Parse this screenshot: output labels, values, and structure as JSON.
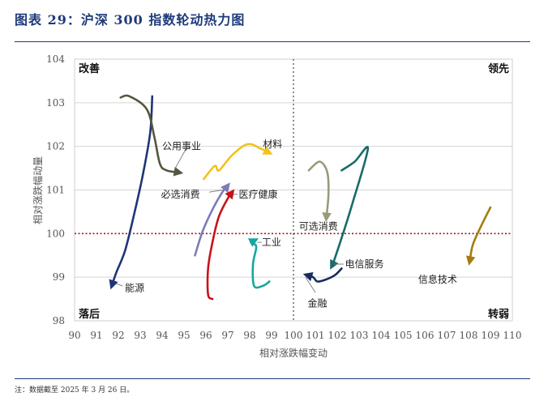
{
  "figure": {
    "title": "图表 29：沪深 300 指数轮动热力图",
    "note": "注：数据截至 2025 年 3 月 26 日。"
  },
  "chart_data": {
    "type": "scatter",
    "xlabel": "相对涨跌幅变动",
    "ylabel": "相对涨跌幅动量",
    "xlim": [
      90,
      110
    ],
    "ylim": [
      98,
      104
    ],
    "xticks": [
      "90",
      "91",
      "92",
      "93",
      "94",
      "95",
      "96",
      "97",
      "98",
      "99",
      "100",
      "101",
      "102",
      "103",
      "104",
      "105",
      "106",
      "107",
      "108",
      "109",
      "110"
    ],
    "yticks": [
      "98",
      "99",
      "100",
      "101",
      "102",
      "103",
      "104"
    ],
    "grid": true,
    "reference_lines": {
      "x": 100,
      "y": 100
    },
    "quadrants": {
      "top_left": "改善",
      "top_right": "领先",
      "bottom_left": "落后",
      "bottom_right": "转弱"
    },
    "series": [
      {
        "name": "能源",
        "color": "#1f3577",
        "points": [
          [
            93.55,
            103.15
          ],
          [
            93.45,
            102.3
          ],
          [
            93.1,
            101.3
          ],
          [
            92.7,
            100.4
          ],
          [
            92.3,
            99.6
          ],
          [
            91.9,
            99.1
          ],
          [
            91.7,
            98.8
          ]
        ]
      },
      {
        "name": "公用事业",
        "color": "#55563f",
        "points": [
          [
            92.1,
            103.12
          ],
          [
            92.5,
            103.15
          ],
          [
            93.3,
            102.85
          ],
          [
            93.65,
            102.2
          ],
          [
            93.9,
            101.6
          ],
          [
            94.2,
            101.45
          ],
          [
            94.8,
            101.4
          ]
        ]
      },
      {
        "name": "材料",
        "color": "#f2c21a",
        "points": [
          [
            95.9,
            101.25
          ],
          [
            96.4,
            101.55
          ],
          [
            96.6,
            101.45
          ],
          [
            97.2,
            101.8
          ],
          [
            97.9,
            102.05
          ],
          [
            98.5,
            101.95
          ],
          [
            98.9,
            101.85
          ]
        ]
      },
      {
        "name": "必选消费",
        "color": "#7d7ab8",
        "points": [
          [
            95.5,
            99.5
          ],
          [
            95.85,
            100.05
          ],
          [
            96.3,
            100.55
          ],
          [
            96.75,
            100.95
          ],
          [
            97.0,
            101.1
          ]
        ]
      },
      {
        "name": "医疗健康",
        "color": "#c8121a",
        "points": [
          [
            96.3,
            98.5
          ],
          [
            96.1,
            98.6
          ],
          [
            96.1,
            99.2
          ],
          [
            96.3,
            99.8
          ],
          [
            96.6,
            100.4
          ],
          [
            97.05,
            100.85
          ],
          [
            97.2,
            100.95
          ]
        ]
      },
      {
        "name": "工业",
        "color": "#16a6a0",
        "points": [
          [
            98.9,
            98.9
          ],
          [
            98.6,
            98.8
          ],
          [
            98.2,
            98.8
          ],
          [
            98.15,
            99.3
          ],
          [
            98.3,
            99.7
          ],
          [
            98.05,
            99.8
          ],
          [
            98.25,
            99.85
          ]
        ]
      },
      {
        "name": "可选消费",
        "color": "#9a9a7a",
        "points": [
          [
            100.7,
            101.45
          ],
          [
            101.2,
            101.65
          ],
          [
            101.55,
            101.4
          ],
          [
            101.6,
            100.9
          ],
          [
            101.5,
            100.35
          ]
        ]
      },
      {
        "name": "电信服务",
        "color": "#1a6a6a",
        "points": [
          [
            102.2,
            101.45
          ],
          [
            102.8,
            101.65
          ],
          [
            103.4,
            101.95
          ],
          [
            102.7,
            100.7
          ],
          [
            102.2,
            99.9
          ],
          [
            101.8,
            99.3
          ],
          [
            101.75,
            99.25
          ]
        ]
      },
      {
        "name": "金融",
        "color": "#172c5c",
        "points": [
          [
            102.2,
            99.2
          ],
          [
            101.9,
            99.05
          ],
          [
            101.5,
            98.95
          ],
          [
            101.1,
            98.9
          ],
          [
            100.9,
            99.0
          ],
          [
            100.6,
            99.05
          ]
        ]
      },
      {
        "name": "信息技术",
        "color": "#a67c10",
        "points": [
          [
            109.0,
            100.6
          ],
          [
            108.6,
            100.2
          ],
          [
            108.2,
            99.75
          ],
          [
            108.05,
            99.35
          ]
        ]
      }
    ],
    "labels": [
      {
        "series": "能源",
        "at": [
          92.3,
          98.75
        ],
        "leader": [
          [
            92.2,
            98.8
          ],
          [
            91.9,
            98.85
          ]
        ]
      },
      {
        "series": "公用事业",
        "at": [
          94.0,
          102.0
        ],
        "leader": [
          [
            95.1,
            101.95
          ],
          [
            94.6,
            101.5
          ]
        ]
      },
      {
        "series": "材料",
        "at": [
          98.6,
          102.05
        ],
        "leader": null
      },
      {
        "series": "必选消费",
        "at": [
          93.95,
          100.9
        ],
        "leader": [
          [
            96.15,
            100.95
          ],
          [
            96.75,
            101.0
          ]
        ]
      },
      {
        "series": "医疗健康",
        "at": [
          97.5,
          100.9
        ],
        "leader": [
          [
            97.25,
            100.9
          ],
          [
            97.45,
            100.9
          ]
        ]
      },
      {
        "series": "工业",
        "at": [
          98.55,
          99.8
        ],
        "leader": [
          [
            98.35,
            99.8
          ],
          [
            98.55,
            99.8
          ]
        ]
      },
      {
        "series": "可选消费",
        "at": [
          100.25,
          100.16
        ],
        "leader": null
      },
      {
        "series": "电信服务",
        "at": [
          102.35,
          99.3
        ],
        "leader": [
          [
            101.85,
            99.3
          ],
          [
            102.3,
            99.3
          ]
        ]
      },
      {
        "series": "金融",
        "at": [
          100.65,
          98.4
        ],
        "leader": [
          [
            100.55,
            99.0
          ],
          [
            101.0,
            98.65
          ]
        ]
      },
      {
        "series": "信息技术",
        "at": [
          105.7,
          98.95
        ],
        "leader": null
      }
    ]
  }
}
